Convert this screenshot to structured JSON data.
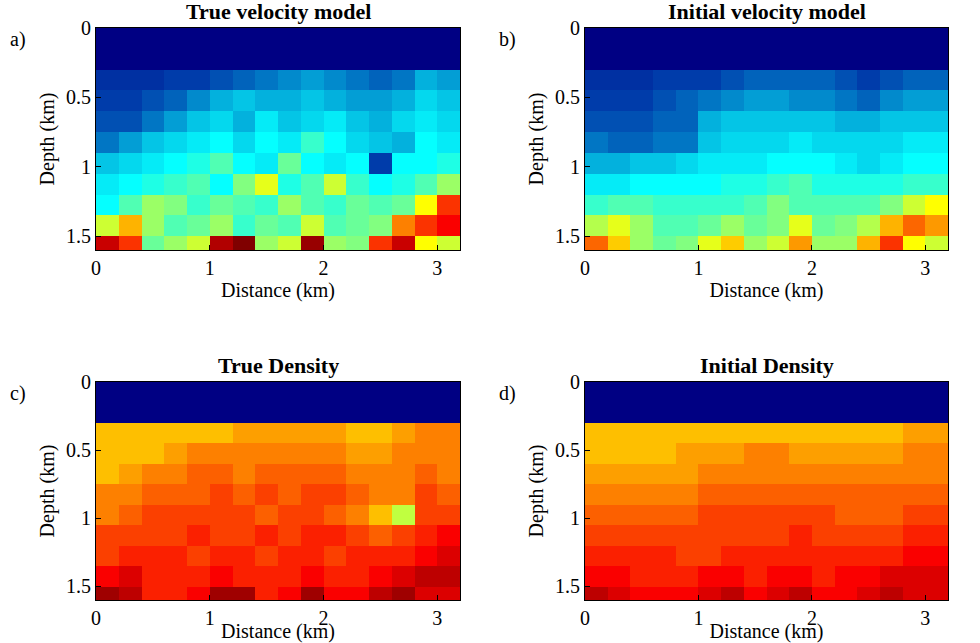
{
  "chart_data": [
    {
      "type": "heatmap",
      "label": "a)",
      "title": "True velocity model",
      "xlabel": "Distance (km)",
      "ylabel": "Depth (km)",
      "color": "jet",
      "xlim": [
        0,
        3.2
      ],
      "ylim": [
        1.6,
        0
      ],
      "xticks": [
        0,
        1,
        2,
        3
      ],
      "yticks": [
        0,
        0.5,
        1,
        1.5
      ],
      "zlim": [
        1.5,
        5.5
      ],
      "x": [
        0.1,
        0.3,
        0.5,
        0.7,
        0.9,
        1.1,
        1.3,
        1.5,
        1.7,
        1.9,
        2.1,
        2.3,
        2.5,
        2.7,
        2.9,
        3.1
      ],
      "y": [
        0.075,
        0.225,
        0.375,
        0.525,
        0.675,
        0.825,
        0.975,
        1.125,
        1.275,
        1.425,
        1.575
      ],
      "z": [
        [
          1.5,
          1.5,
          1.5,
          1.5,
          1.5,
          1.5,
          1.5,
          1.5,
          1.5,
          1.5,
          1.5,
          1.5,
          1.5,
          1.5,
          1.5,
          1.5
        ],
        [
          1.5,
          1.5,
          1.5,
          1.5,
          1.5,
          1.5,
          1.5,
          1.5,
          1.5,
          1.5,
          1.5,
          1.5,
          1.5,
          1.5,
          1.5,
          1.5
        ],
        [
          1.9,
          1.9,
          1.9,
          2.0,
          2.0,
          2.1,
          2.2,
          2.3,
          2.4,
          2.5,
          2.4,
          2.3,
          2.2,
          2.3,
          2.6,
          2.5
        ],
        [
          2.0,
          2.0,
          2.1,
          2.2,
          2.4,
          2.6,
          2.7,
          2.6,
          2.6,
          2.7,
          2.6,
          2.5,
          2.5,
          2.6,
          2.8,
          2.7
        ],
        [
          2.1,
          2.1,
          2.3,
          2.5,
          2.7,
          2.8,
          2.6,
          2.9,
          2.7,
          2.8,
          2.9,
          2.7,
          2.6,
          2.8,
          2.9,
          2.8
        ],
        [
          2.3,
          2.5,
          2.7,
          2.8,
          2.9,
          3.0,
          2.8,
          3.0,
          2.9,
          3.2,
          3.0,
          2.8,
          2.7,
          2.6,
          3.0,
          2.9
        ],
        [
          2.7,
          2.8,
          2.9,
          3.0,
          3.1,
          3.3,
          3.0,
          2.9,
          3.4,
          3.0,
          2.9,
          3.0,
          2.0,
          3.0,
          3.0,
          3.1
        ],
        [
          2.9,
          3.0,
          3.1,
          3.2,
          3.3,
          3.0,
          3.5,
          3.9,
          3.1,
          3.3,
          3.8,
          3.2,
          3.0,
          3.1,
          3.3,
          3.6
        ],
        [
          3.0,
          3.3,
          3.6,
          3.5,
          3.2,
          3.4,
          3.3,
          3.2,
          3.6,
          3.3,
          3.2,
          3.4,
          3.3,
          3.4,
          4.0,
          4.8
        ],
        [
          3.8,
          4.3,
          3.6,
          3.3,
          3.4,
          3.6,
          3.2,
          3.4,
          3.3,
          3.8,
          3.3,
          3.4,
          3.5,
          4.5,
          4.8,
          5.0
        ],
        [
          5.2,
          4.8,
          3.4,
          3.6,
          3.8,
          5.3,
          5.5,
          3.6,
          3.8,
          5.4,
          3.6,
          3.5,
          4.8,
          5.2,
          4.0,
          3.8
        ]
      ]
    },
    {
      "type": "heatmap",
      "label": "b)",
      "title": "Initial velocity model",
      "xlabel": "Distance (km)",
      "ylabel": "Depth (km)",
      "color": "jet",
      "xlim": [
        0,
        3.2
      ],
      "ylim": [
        1.6,
        0
      ],
      "xticks": [
        0,
        1,
        2,
        3
      ],
      "yticks": [
        0,
        0.5,
        1,
        1.5
      ],
      "zlim": [
        1.5,
        5.5
      ],
      "x": [
        0.1,
        0.3,
        0.5,
        0.7,
        0.9,
        1.1,
        1.3,
        1.5,
        1.7,
        1.9,
        2.1,
        2.3,
        2.5,
        2.7,
        2.9,
        3.1
      ],
      "y": [
        0.075,
        0.225,
        0.375,
        0.525,
        0.675,
        0.825,
        0.975,
        1.125,
        1.275,
        1.425,
        1.575
      ],
      "z": [
        [
          1.5,
          1.5,
          1.5,
          1.5,
          1.5,
          1.5,
          1.5,
          1.5,
          1.5,
          1.5,
          1.5,
          1.5,
          1.5,
          1.5,
          1.5,
          1.5
        ],
        [
          1.5,
          1.5,
          1.5,
          1.5,
          1.5,
          1.5,
          1.5,
          1.5,
          1.5,
          1.5,
          1.5,
          1.5,
          1.5,
          1.5,
          1.5,
          1.5
        ],
        [
          1.9,
          1.9,
          1.9,
          2.0,
          2.0,
          2.0,
          2.1,
          2.2,
          2.2,
          2.2,
          2.2,
          2.1,
          2.0,
          2.1,
          2.2,
          2.2
        ],
        [
          2.0,
          2.0,
          2.0,
          2.1,
          2.2,
          2.3,
          2.4,
          2.5,
          2.5,
          2.4,
          2.4,
          2.3,
          2.2,
          2.4,
          2.5,
          2.5
        ],
        [
          2.1,
          2.1,
          2.1,
          2.2,
          2.2,
          2.6,
          2.7,
          2.7,
          2.7,
          2.7,
          2.7,
          2.6,
          2.6,
          2.7,
          2.7,
          2.7
        ],
        [
          2.3,
          2.2,
          2.2,
          2.3,
          2.3,
          2.7,
          2.8,
          2.8,
          2.8,
          2.9,
          2.8,
          2.8,
          2.8,
          2.8,
          2.9,
          2.9
        ],
        [
          2.6,
          2.6,
          2.7,
          2.7,
          2.8,
          2.9,
          2.9,
          2.9,
          3.0,
          3.0,
          3.0,
          2.9,
          2.8,
          2.9,
          3.0,
          3.0
        ],
        [
          2.9,
          2.9,
          3.0,
          3.0,
          3.0,
          3.0,
          3.1,
          3.1,
          3.2,
          3.3,
          3.1,
          3.1,
          3.1,
          3.1,
          3.2,
          3.2
        ],
        [
          3.2,
          3.3,
          3.3,
          3.2,
          3.2,
          3.2,
          3.2,
          3.3,
          3.5,
          3.3,
          3.3,
          3.3,
          3.3,
          3.5,
          3.8,
          4.0
        ],
        [
          3.7,
          3.9,
          3.6,
          3.3,
          3.3,
          3.4,
          3.6,
          3.4,
          3.5,
          3.9,
          3.4,
          3.5,
          3.7,
          4.3,
          4.6,
          4.4
        ],
        [
          4.6,
          4.2,
          3.6,
          3.4,
          3.5,
          3.9,
          4.2,
          3.6,
          3.8,
          4.4,
          3.6,
          3.6,
          4.3,
          4.8,
          4.0,
          3.8
        ]
      ]
    },
    {
      "type": "heatmap",
      "label": "c)",
      "title": "True Density",
      "xlabel": "Distance (km)",
      "ylabel": "Depth (km)",
      "color": "jet",
      "xlim": [
        0,
        3.2
      ],
      "ylim": [
        1.6,
        0
      ],
      "xticks": [
        0,
        1,
        2,
        3
      ],
      "yticks": [
        0,
        0.5,
        1,
        1.5
      ],
      "zlim": [
        1.0,
        2.6
      ],
      "x": [
        0.1,
        0.3,
        0.5,
        0.7,
        0.9,
        1.1,
        1.3,
        1.5,
        1.7,
        1.9,
        2.1,
        2.3,
        2.5,
        2.7,
        2.9,
        3.1
      ],
      "y": [
        0.075,
        0.225,
        0.375,
        0.525,
        0.675,
        0.825,
        0.975,
        1.125,
        1.275,
        1.425,
        1.575
      ],
      "z": [
        [
          1.0,
          1.0,
          1.0,
          1.0,
          1.0,
          1.0,
          1.0,
          1.0,
          1.0,
          1.0,
          1.0,
          1.0,
          1.0,
          1.0,
          1.0,
          1.0
        ],
        [
          1.0,
          1.0,
          1.0,
          1.0,
          1.0,
          1.0,
          1.0,
          1.0,
          1.0,
          1.0,
          1.0,
          1.0,
          1.0,
          1.0,
          1.0,
          1.0
        ],
        [
          2.1,
          2.1,
          2.1,
          2.1,
          2.1,
          2.1,
          2.15,
          2.15,
          2.15,
          2.15,
          2.15,
          2.1,
          2.1,
          2.15,
          2.2,
          2.2
        ],
        [
          2.1,
          2.1,
          2.1,
          2.15,
          2.2,
          2.2,
          2.2,
          2.2,
          2.2,
          2.2,
          2.2,
          2.15,
          2.15,
          2.2,
          2.2,
          2.2
        ],
        [
          2.1,
          2.15,
          2.2,
          2.2,
          2.25,
          2.25,
          2.2,
          2.25,
          2.25,
          2.25,
          2.25,
          2.2,
          2.2,
          2.2,
          2.25,
          2.2
        ],
        [
          2.2,
          2.2,
          2.25,
          2.25,
          2.25,
          2.3,
          2.25,
          2.3,
          2.25,
          2.3,
          2.3,
          2.25,
          2.2,
          2.2,
          2.3,
          2.25
        ],
        [
          2.2,
          2.25,
          2.3,
          2.3,
          2.3,
          2.3,
          2.3,
          2.25,
          2.3,
          2.3,
          2.25,
          2.2,
          2.1,
          1.9,
          2.3,
          2.3
        ],
        [
          2.3,
          2.3,
          2.3,
          2.3,
          2.35,
          2.3,
          2.3,
          2.35,
          2.3,
          2.35,
          2.35,
          2.3,
          2.25,
          2.3,
          2.35,
          2.4
        ],
        [
          2.3,
          2.35,
          2.35,
          2.35,
          2.3,
          2.35,
          2.35,
          2.3,
          2.35,
          2.35,
          2.3,
          2.35,
          2.35,
          2.35,
          2.4,
          2.45
        ],
        [
          2.4,
          2.45,
          2.35,
          2.35,
          2.35,
          2.4,
          2.35,
          2.35,
          2.35,
          2.4,
          2.35,
          2.35,
          2.4,
          2.45,
          2.5,
          2.5
        ],
        [
          2.55,
          2.5,
          2.35,
          2.35,
          2.4,
          2.55,
          2.55,
          2.35,
          2.4,
          2.55,
          2.4,
          2.4,
          2.5,
          2.55,
          2.45,
          2.45
        ]
      ]
    },
    {
      "type": "heatmap",
      "label": "d)",
      "title": "Initial Density",
      "xlabel": "Distance (km)",
      "ylabel": "Depth (km)",
      "color": "jet",
      "xlim": [
        0,
        3.2
      ],
      "ylim": [
        1.6,
        0
      ],
      "xticks": [
        0,
        1,
        2,
        3
      ],
      "yticks": [
        0,
        0.5,
        1,
        1.5
      ],
      "zlim": [
        1.0,
        2.6
      ],
      "x": [
        0.1,
        0.3,
        0.5,
        0.7,
        0.9,
        1.1,
        1.3,
        1.5,
        1.7,
        1.9,
        2.1,
        2.3,
        2.5,
        2.7,
        2.9,
        3.1
      ],
      "y": [
        0.075,
        0.225,
        0.375,
        0.525,
        0.675,
        0.825,
        0.975,
        1.125,
        1.275,
        1.425,
        1.575
      ],
      "z": [
        [
          1.0,
          1.0,
          1.0,
          1.0,
          1.0,
          1.0,
          1.0,
          1.0,
          1.0,
          1.0,
          1.0,
          1.0,
          1.0,
          1.0,
          1.0,
          1.0
        ],
        [
          1.0,
          1.0,
          1.0,
          1.0,
          1.0,
          1.0,
          1.0,
          1.0,
          1.0,
          1.0,
          1.0,
          1.0,
          1.0,
          1.0,
          1.0,
          1.0
        ],
        [
          2.1,
          2.1,
          2.1,
          2.1,
          2.1,
          2.1,
          2.1,
          2.1,
          2.1,
          2.1,
          2.1,
          2.1,
          2.1,
          2.1,
          2.15,
          2.15
        ],
        [
          2.1,
          2.1,
          2.1,
          2.1,
          2.15,
          2.15,
          2.15,
          2.2,
          2.2,
          2.15,
          2.15,
          2.15,
          2.15,
          2.15,
          2.2,
          2.2
        ],
        [
          2.15,
          2.15,
          2.15,
          2.15,
          2.15,
          2.2,
          2.2,
          2.2,
          2.2,
          2.2,
          2.2,
          2.2,
          2.2,
          2.2,
          2.2,
          2.2
        ],
        [
          2.2,
          2.2,
          2.2,
          2.2,
          2.2,
          2.25,
          2.25,
          2.25,
          2.25,
          2.25,
          2.25,
          2.25,
          2.25,
          2.25,
          2.25,
          2.25
        ],
        [
          2.25,
          2.25,
          2.25,
          2.25,
          2.25,
          2.3,
          2.3,
          2.3,
          2.3,
          2.3,
          2.3,
          2.25,
          2.25,
          2.25,
          2.3,
          2.3
        ],
        [
          2.3,
          2.3,
          2.3,
          2.3,
          2.3,
          2.3,
          2.3,
          2.3,
          2.3,
          2.35,
          2.3,
          2.3,
          2.3,
          2.3,
          2.35,
          2.35
        ],
        [
          2.35,
          2.35,
          2.35,
          2.35,
          2.3,
          2.3,
          2.35,
          2.35,
          2.35,
          2.35,
          2.35,
          2.35,
          2.35,
          2.35,
          2.4,
          2.4
        ],
        [
          2.4,
          2.4,
          2.35,
          2.35,
          2.35,
          2.4,
          2.4,
          2.35,
          2.4,
          2.4,
          2.35,
          2.4,
          2.4,
          2.45,
          2.45,
          2.45
        ],
        [
          2.5,
          2.45,
          2.4,
          2.4,
          2.4,
          2.45,
          2.5,
          2.4,
          2.45,
          2.5,
          2.4,
          2.4,
          2.45,
          2.5,
          2.45,
          2.45
        ]
      ]
    }
  ]
}
